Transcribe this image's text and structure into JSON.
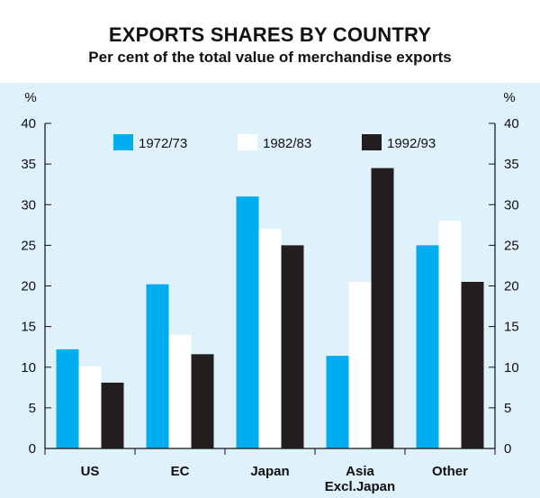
{
  "chart_data": {
    "type": "bar",
    "title": "EXPORTS SHARES BY COUNTRY",
    "subtitle": "Per cent of the total value of merchandise exports",
    "ylabel_left": "%",
    "ylabel_right": "%",
    "ylim": [
      0,
      40
    ],
    "yticks": [
      0,
      5,
      10,
      15,
      20,
      25,
      30,
      35,
      40
    ],
    "categories": [
      [
        "US"
      ],
      [
        "EC"
      ],
      [
        "Japan"
      ],
      [
        "Asia",
        "Excl.Japan"
      ],
      [
        "Other"
      ]
    ],
    "series": [
      {
        "name": "1972/73",
        "color": "#00aeef",
        "values": [
          12.2,
          20.2,
          31.0,
          11.4,
          25.0
        ]
      },
      {
        "name": "1982/83",
        "color": "#ffffff",
        "values": [
          10.1,
          14.0,
          27.0,
          20.5,
          28.0
        ]
      },
      {
        "name": "1992/93",
        "color": "#231f20",
        "values": [
          8.1,
          11.6,
          25.0,
          34.5,
          20.5
        ]
      }
    ],
    "grid": false,
    "legend_position": "top-center",
    "background_color": "#dff1fa"
  }
}
